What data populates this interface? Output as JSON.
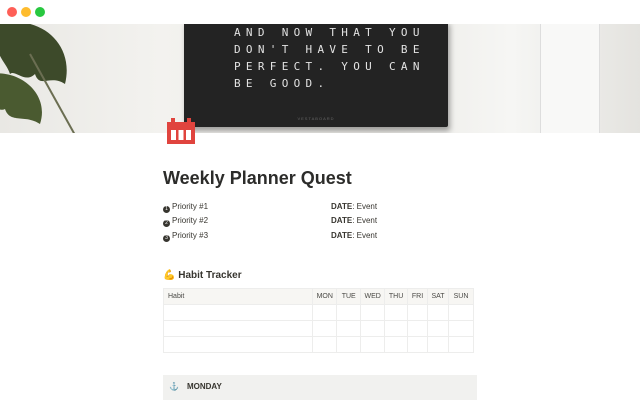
{
  "window": {
    "controls": [
      {
        "name": "close",
        "color": "#fe5f57"
      },
      {
        "name": "minimize",
        "color": "#febc2e"
      },
      {
        "name": "maximize",
        "color": "#28c840"
      }
    ]
  },
  "cover": {
    "board_lines": [
      "AND NOW THAT YOU",
      "DON'T HAVE TO BE",
      "PERFECT. YOU CAN",
      "BE GOOD."
    ],
    "board_brand": "VESTABOARD"
  },
  "page": {
    "icon": "calendar-icon",
    "icon_color": "#e0443e",
    "title": "Weekly Planner Quest"
  },
  "priorities": [
    {
      "num": "1",
      "label": "Priority #1"
    },
    {
      "num": "2",
      "label": "Priority #2"
    },
    {
      "num": "3",
      "label": "Priority #3"
    }
  ],
  "dates": [
    {
      "key": "DATE",
      "value": ": Event"
    },
    {
      "key": "DATE",
      "value": ": Event"
    },
    {
      "key": "DATE",
      "value": ": Event"
    }
  ],
  "habit_tracker": {
    "emoji": "💪",
    "title": "Habit Tracker",
    "columns": [
      "Habit",
      "MON",
      "TUE",
      "WED",
      "THU",
      "FRI",
      "SAT",
      "SUN"
    ],
    "rows": [
      [
        "",
        "",
        "",
        "",
        "",
        "",
        "",
        ""
      ],
      [
        "",
        "",
        "",
        "",
        "",
        "",
        "",
        ""
      ],
      [
        "",
        "",
        "",
        "",
        "",
        "",
        "",
        ""
      ]
    ]
  },
  "monday": {
    "icon": "anchor-icon",
    "emoji": "⚓",
    "label": "MONDAY"
  }
}
